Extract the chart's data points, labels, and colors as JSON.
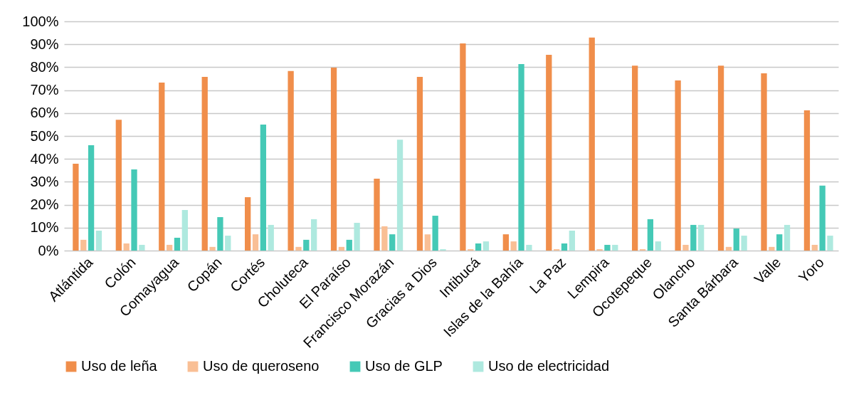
{
  "chart_data": {
    "type": "bar",
    "categories": [
      "Atlántida",
      "Colón",
      "Comayagua",
      "Copán",
      "Cortés",
      "Choluteca",
      "El Paraíso",
      "Francisco Morazán",
      "Gracias a Dios",
      "Intibucá",
      "Islas de la Bahía",
      "La Paz",
      "Lempira",
      "Ocotepeque",
      "Olancho",
      "Santa Bárbara",
      "Valle",
      "Yoro"
    ],
    "series": [
      {
        "name": "Uso de leña",
        "color": "#f08e4b",
        "values": [
          37.9,
          57.1,
          73.3,
          75.8,
          23.3,
          78.3,
          79.8,
          31.4,
          75.8,
          90.4,
          7.1,
          85.4,
          92.9,
          80.7,
          74.2,
          80.7,
          77.3,
          61.2
        ]
      },
      {
        "name": "Uso de queroseno",
        "color": "#f9bf95",
        "values": [
          4.7,
          3.1,
          2.5,
          1.6,
          7.1,
          1.6,
          1.6,
          10.6,
          7.1,
          0.6,
          4.0,
          0.6,
          0.6,
          0.6,
          2.5,
          1.6,
          1.6,
          2.5
        ]
      },
      {
        "name": "Uso de GLP",
        "color": "#45c9b6",
        "values": [
          46.0,
          35.4,
          5.6,
          14.6,
          55.0,
          4.7,
          4.7,
          7.1,
          15.2,
          3.1,
          81.4,
          3.1,
          2.5,
          13.7,
          11.2,
          9.6,
          7.1,
          28.3
        ]
      },
      {
        "name": "Uso de electricidad",
        "color": "#aee9df",
        "values": [
          8.7,
          2.5,
          17.7,
          6.5,
          11.2,
          13.7,
          12.1,
          48.4,
          0.6,
          4.0,
          2.5,
          8.7,
          2.5,
          4.0,
          11.2,
          6.5,
          11.2,
          6.5
        ]
      }
    ],
    "ylim": [
      0,
      100
    ],
    "yticks": [
      {
        "value": 0,
        "label": "0%"
      },
      {
        "value": 10,
        "label": "10%"
      },
      {
        "value": 20,
        "label": "20%"
      },
      {
        "value": 30,
        "label": "30%"
      },
      {
        "value": 40,
        "label": "40%"
      },
      {
        "value": 50,
        "label": "50%"
      },
      {
        "value": 60,
        "label": "60%"
      },
      {
        "value": 70,
        "label": "70%"
      },
      {
        "value": 80,
        "label": "80%"
      },
      {
        "value": 90,
        "label": "90%"
      },
      {
        "value": 100,
        "label": "100%"
      }
    ],
    "grid": "y",
    "legend": "bottom"
  }
}
